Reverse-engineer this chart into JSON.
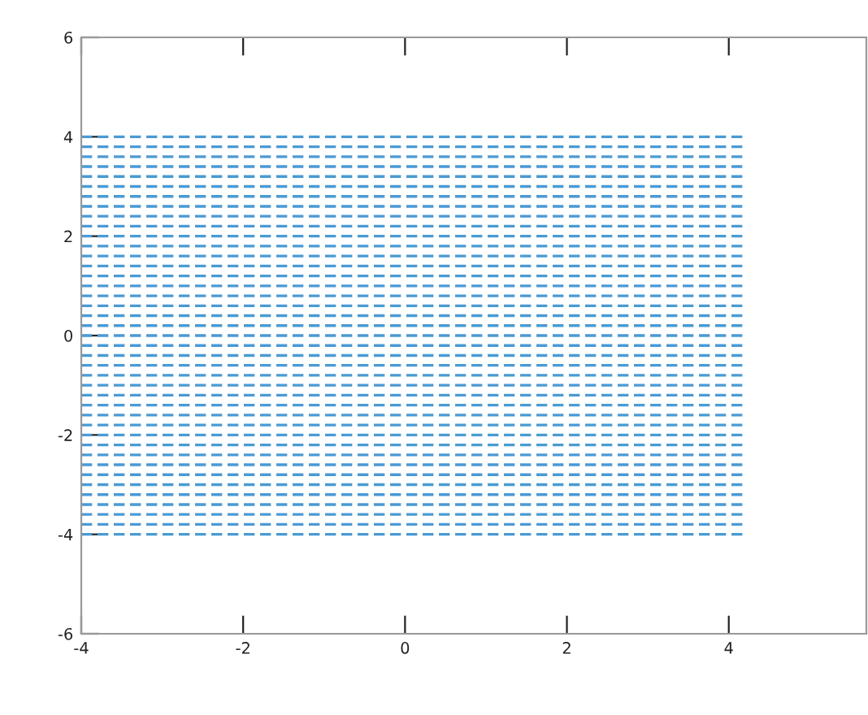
{
  "chart_data": {
    "type": "line",
    "x": [
      -4,
      4.2
    ],
    "xlim": [
      -4,
      5.7
    ],
    "ylim": [
      -6,
      6
    ],
    "xticks": [
      -4,
      -2,
      0,
      2,
      4
    ],
    "yticks": [
      -6,
      -4,
      -2,
      0,
      2,
      4,
      6
    ],
    "grid": false,
    "legend": false,
    "marker": "none",
    "line_style": "dashed",
    "series": [
      {
        "color": "#4a9ad4",
        "values": [
          -4,
          -4
        ]
      },
      {
        "color": "#4a9ad4",
        "values": [
          -3.8,
          -3.8
        ]
      },
      {
        "color": "#4a9ad4",
        "values": [
          -3.6,
          -3.6
        ]
      },
      {
        "color": "#4a9ad4",
        "values": [
          -3.4,
          -3.4
        ]
      },
      {
        "color": "#4a9ad4",
        "values": [
          -3.2,
          -3.2
        ]
      },
      {
        "color": "#4a9ad4",
        "values": [
          -3,
          -3
        ]
      },
      {
        "color": "#4a9ad4",
        "values": [
          -2.8,
          -2.8
        ]
      },
      {
        "color": "#4a9ad4",
        "values": [
          -2.6,
          -2.6
        ]
      },
      {
        "color": "#4a9ad4",
        "values": [
          -2.4,
          -2.4
        ]
      },
      {
        "color": "#4a9ad4",
        "values": [
          -2.2,
          -2.2
        ]
      },
      {
        "color": "#4a9ad4",
        "values": [
          -2,
          -2
        ]
      },
      {
        "color": "#4a9ad4",
        "values": [
          -1.8,
          -1.8
        ]
      },
      {
        "color": "#4a9ad4",
        "values": [
          -1.6,
          -1.6
        ]
      },
      {
        "color": "#4a9ad4",
        "values": [
          -1.4,
          -1.4
        ]
      },
      {
        "color": "#4a9ad4",
        "values": [
          -1.2,
          -1.2
        ]
      },
      {
        "color": "#4a9ad4",
        "values": [
          -1,
          -1
        ]
      },
      {
        "color": "#4a9ad4",
        "values": [
          -0.8,
          -0.8
        ]
      },
      {
        "color": "#4a9ad4",
        "values": [
          -0.6,
          -0.6
        ]
      },
      {
        "color": "#4a9ad4",
        "values": [
          -0.4,
          -0.4
        ]
      },
      {
        "color": "#4a9ad4",
        "values": [
          -0.2,
          -0.2
        ]
      },
      {
        "color": "#4a9ad4",
        "values": [
          0,
          0
        ]
      },
      {
        "color": "#4a9ad4",
        "values": [
          0.2,
          0.2
        ]
      },
      {
        "color": "#4a9ad4",
        "values": [
          0.4,
          0.4
        ]
      },
      {
        "color": "#4a9ad4",
        "values": [
          0.6,
          0.6
        ]
      },
      {
        "color": "#4a9ad4",
        "values": [
          0.8,
          0.8
        ]
      },
      {
        "color": "#4a9ad4",
        "values": [
          1,
          1
        ]
      },
      {
        "color": "#4a9ad4",
        "values": [
          1.2,
          1.2
        ]
      },
      {
        "color": "#4a9ad4",
        "values": [
          1.4,
          1.4
        ]
      },
      {
        "color": "#4a9ad4",
        "values": [
          1.6,
          1.6
        ]
      },
      {
        "color": "#4a9ad4",
        "values": [
          1.8,
          1.8
        ]
      },
      {
        "color": "#4a9ad4",
        "values": [
          2,
          2
        ]
      },
      {
        "color": "#4a9ad4",
        "values": [
          2.2,
          2.2
        ]
      },
      {
        "color": "#4a9ad4",
        "values": [
          2.4,
          2.4
        ]
      },
      {
        "color": "#4a9ad4",
        "values": [
          2.6,
          2.6
        ]
      },
      {
        "color": "#4a9ad4",
        "values": [
          2.8,
          2.8
        ]
      },
      {
        "color": "#4a9ad4",
        "values": [
          3,
          3
        ]
      },
      {
        "color": "#4a9ad4",
        "values": [
          3.2,
          3.2
        ]
      },
      {
        "color": "#4a9ad4",
        "values": [
          3.4,
          3.4
        ]
      },
      {
        "color": "#4a9ad4",
        "values": [
          3.6,
          3.6
        ]
      },
      {
        "color": "#4a9ad4",
        "values": [
          3.8,
          3.8
        ]
      },
      {
        "color": "#4a9ad4",
        "values": [
          4,
          4
        ]
      }
    ]
  }
}
